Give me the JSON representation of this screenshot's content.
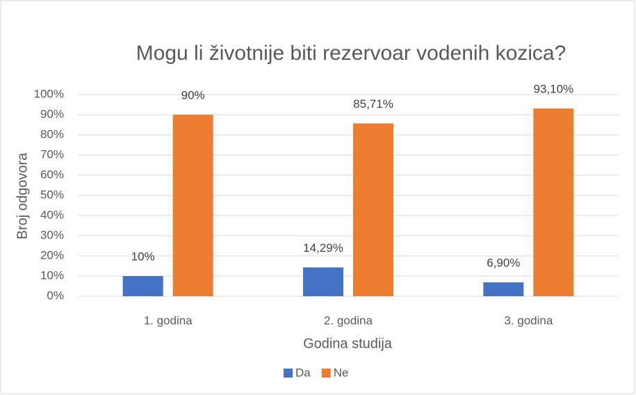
{
  "chart_data": {
    "type": "bar",
    "title": "Mogu li životnije biti rezervoar vodenih kozica?",
    "x_label": "Godina studija",
    "y_label": "Broj odgovora",
    "categories": [
      "1. godina",
      "2. godina",
      "3. godina"
    ],
    "series": [
      {
        "name": "Da",
        "color": "#4472c4",
        "values": [
          10,
          14.29,
          6.9
        ],
        "value_labels": [
          "10%",
          "14,29%",
          "6,90%"
        ]
      },
      {
        "name": "Ne",
        "color": "#ed7d31",
        "values": [
          90,
          85.71,
          93.1
        ],
        "value_labels": [
          "90%",
          "85,71%",
          "93,10%"
        ]
      }
    ],
    "ylim": [
      0,
      100
    ],
    "yticks": [
      {
        "value": 0,
        "label": "0%"
      },
      {
        "value": 10,
        "label": "10%"
      },
      {
        "value": 20,
        "label": "20%"
      },
      {
        "value": 30,
        "label": "30%"
      },
      {
        "value": 40,
        "label": "40%"
      },
      {
        "value": 50,
        "label": "50%"
      },
      {
        "value": 60,
        "label": "60%"
      },
      {
        "value": 70,
        "label": "70%"
      },
      {
        "value": 80,
        "label": "80%"
      },
      {
        "value": 90,
        "label": "90%"
      },
      {
        "value": 100,
        "label": "100%"
      }
    ],
    "grid": true,
    "legend": "bottom"
  }
}
